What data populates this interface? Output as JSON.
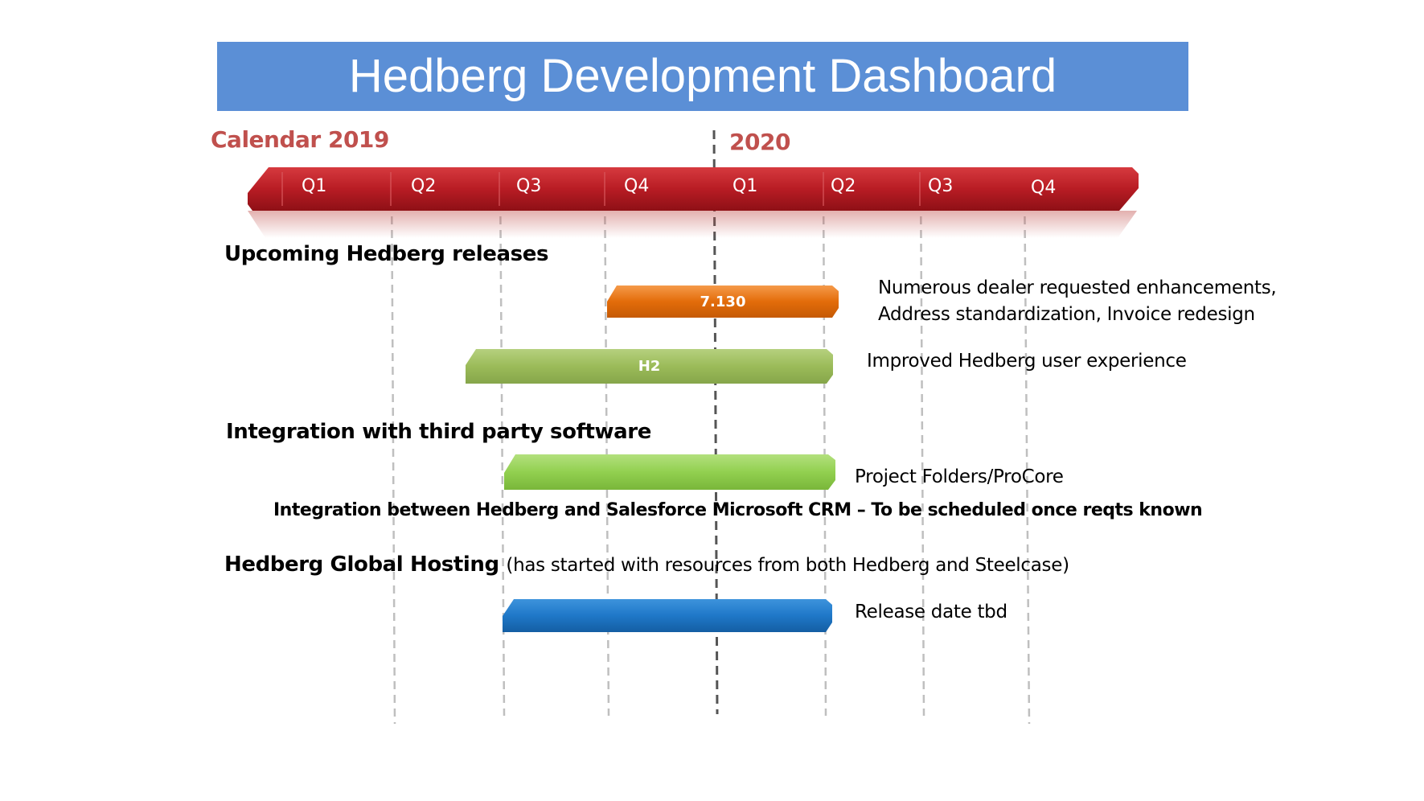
{
  "title": "Hedberg Development Dashboard",
  "timeline": {
    "year_left": "Calendar 2019",
    "year_right": "2020",
    "quarters": [
      "Q1",
      "Q2",
      "Q3",
      "Q4",
      "Q1",
      "Q2",
      "Q3",
      "Q4"
    ]
  },
  "sections": {
    "releases": {
      "heading": "Upcoming Hedberg releases",
      "items": [
        {
          "bar_label": "7.130",
          "color": "#e36c0a",
          "description": [
            "Numerous dealer requested enhancements,",
            "Address standardization, Invoice redesign"
          ]
        },
        {
          "bar_label": "H2",
          "color": "#9bbb59",
          "description": [
            "Improved Hedberg user experience"
          ]
        }
      ]
    },
    "integration": {
      "heading": "Integration with third party software",
      "items": [
        {
          "bar_label": "",
          "color": "#92d050",
          "description": [
            "Project Folders/ProCore"
          ]
        }
      ],
      "note": "Integration between Hedberg and Salesforce Microsoft CRM – To be scheduled once reqts known"
    },
    "hosting": {
      "heading": "Hedberg Global Hosting",
      "subheading": "(has started with resources from both Hedberg and Steelcase)",
      "items": [
        {
          "bar_label": "",
          "color": "#1f78c8",
          "description": [
            "Release date tbd"
          ]
        }
      ]
    }
  },
  "colors": {
    "title_banner": "#5b8fd6",
    "timeline_band": "#b81c24",
    "year_labels": "#c0504d",
    "gridlines": "#bfbfbf"
  }
}
